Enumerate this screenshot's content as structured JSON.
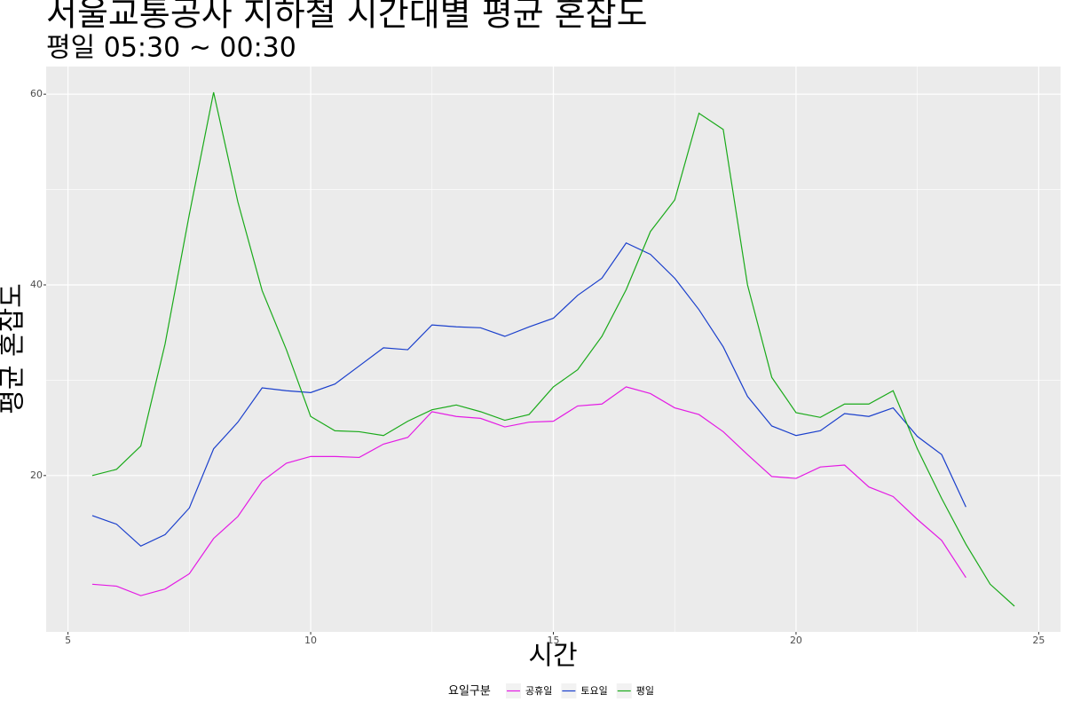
{
  "chart_data": {
    "type": "line",
    "title": "서울교통공사 지하철 시간대별 평균 혼잡도",
    "subtitle": "평일 05:30 ~ 00:30",
    "x_label": "시간",
    "y_label": "평균 혼잡도",
    "legend_title": "요일구분",
    "x": [
      5.5,
      6,
      6.5,
      7,
      7.5,
      8,
      8.5,
      9,
      9.5,
      10,
      10.5,
      11,
      11.5,
      12,
      12.5,
      13,
      13.5,
      14,
      14.5,
      15,
      15.5,
      16,
      16.5,
      17,
      17.5,
      18,
      18.5,
      19,
      19.5,
      20,
      20.5,
      21,
      21.5,
      22,
      22.5,
      23,
      23.5,
      24,
      24.5
    ],
    "series": [
      {
        "name": "공휴일",
        "color": "#e41ae4",
        "values": [
          8.6,
          8.4,
          7.4,
          8.1,
          9.7,
          13.4,
          15.7,
          19.4,
          21.3,
          22.0,
          22.0,
          21.9,
          23.3,
          24.0,
          26.7,
          26.2,
          26.0,
          25.1,
          25.6,
          25.7,
          27.3,
          27.5,
          29.3,
          28.6,
          27.1,
          26.4,
          24.6,
          22.2,
          19.9,
          19.7,
          20.9,
          21.1,
          18.8,
          17.8,
          15.4,
          13.2,
          9.3,
          null,
          null
        ]
      },
      {
        "name": "토요일",
        "color": "#1a3fcc",
        "values": [
          15.8,
          14.9,
          12.6,
          13.8,
          16.6,
          22.8,
          25.6,
          29.2,
          28.9,
          28.7,
          29.6,
          31.5,
          33.4,
          33.2,
          35.8,
          35.6,
          35.5,
          34.6,
          35.6,
          36.5,
          38.9,
          40.7,
          44.4,
          43.2,
          40.7,
          37.4,
          33.5,
          28.3,
          25.2,
          24.2,
          24.7,
          26.5,
          26.2,
          27.1,
          24.1,
          22.2,
          16.7,
          null,
          null
        ]
      },
      {
        "name": "평일",
        "color": "#1aaa1a",
        "values": [
          20.0,
          20.65,
          23.1,
          33.8,
          47.4,
          60.2,
          48.7,
          39.4,
          33.2,
          26.2,
          24.7,
          24.6,
          24.2,
          25.7,
          26.9,
          27.4,
          26.7,
          25.8,
          26.4,
          29.3,
          31.1,
          34.6,
          39.5,
          45.6,
          48.9,
          58.0,
          56.3,
          40.0,
          30.3,
          26.6,
          26.1,
          27.5,
          27.5,
          28.9,
          22.8,
          17.6,
          12.8,
          8.6,
          6.3
        ]
      }
    ],
    "xlim": [
      4.55,
      25.45
    ],
    "ylim": [
      3.6,
      62.9
    ],
    "xticks": [
      5,
      10,
      15,
      20,
      25
    ],
    "yticks": [
      20,
      40,
      60
    ],
    "grid": true
  }
}
